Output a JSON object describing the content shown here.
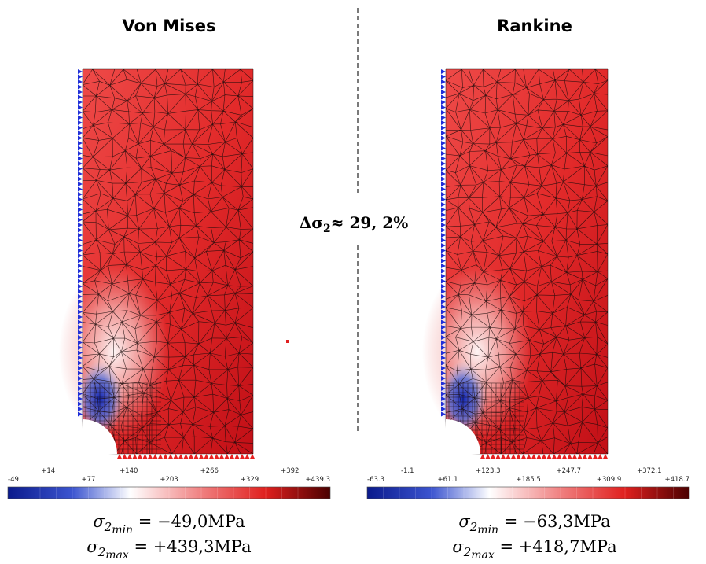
{
  "panels": [
    {
      "title": "Von Mises",
      "colorbar_labels": [
        "-49",
        "+14",
        "+77",
        "+140",
        "+203",
        "+266",
        "+329",
        "+392",
        "+439.3"
      ],
      "min": {
        "symbol": "σ",
        "sub": "2",
        "subsub": "min",
        "rhs": " = −49,0MPa"
      },
      "max": {
        "symbol": "σ",
        "sub": "2",
        "subsub": "max",
        "rhs": " = +439,3MPa"
      }
    },
    {
      "title": "Rankine",
      "colorbar_labels": [
        "-63.3",
        "-1.1",
        "+61.1",
        "+123.3",
        "+185.5",
        "+247.7",
        "+309.9",
        "+372.1",
        "+418.7"
      ],
      "min": {
        "symbol": "σ",
        "sub": "2",
        "subsub": "min",
        "rhs": " = −63,3MPa"
      },
      "max": {
        "symbol": "σ",
        "sub": "2",
        "subsub": "max",
        "rhs": " = +418,7MPa"
      }
    }
  ],
  "difference": {
    "symbol": "Δσ",
    "sub": "2",
    "rhs": "≈ 29, 2%"
  }
}
